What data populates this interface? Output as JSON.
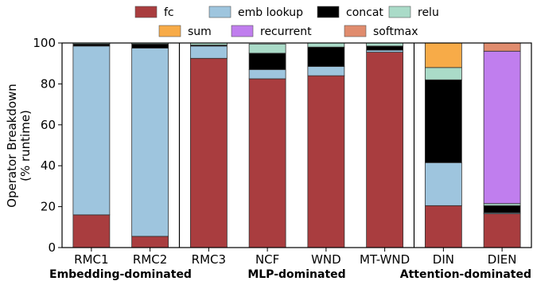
{
  "chart_data": {
    "type": "bar",
    "stacked": true,
    "ylabel_line1": "Operator Breakdown",
    "ylabel_line2": "(% runtime)",
    "ylim": [
      0,
      100
    ],
    "yticks": [
      0,
      20,
      40,
      60,
      80,
      100
    ],
    "categories": [
      "RMC1",
      "RMC2",
      "RMC3",
      "NCF",
      "WND",
      "MT-WND",
      "DIN",
      "DIEN"
    ],
    "groups": [
      {
        "label": "Embedding-dominated",
        "categories": [
          "RMC1",
          "RMC2"
        ]
      },
      {
        "label": "MLP-dominated",
        "categories": [
          "RMC3",
          "NCF",
          "WND",
          "MT-WND"
        ]
      },
      {
        "label": "Attention-dominated",
        "categories": [
          "DIN",
          "DIEN"
        ]
      }
    ],
    "legend_position": "top-center",
    "series": [
      {
        "name": "fc",
        "color": "#a93d3f",
        "values": [
          16,
          5.5,
          92.5,
          82.5,
          84,
          95.5,
          20.5,
          16.5
        ]
      },
      {
        "name": "emb lookup",
        "color": "#9ec5de",
        "values": [
          82.5,
          92,
          6,
          4.5,
          4.5,
          1,
          21,
          0.5
        ]
      },
      {
        "name": "concat",
        "color": "#000000",
        "values": [
          1,
          2,
          0.5,
          8,
          9.5,
          2,
          40.5,
          3.5
        ]
      },
      {
        "name": "relu",
        "color": "#aadbc8",
        "values": [
          0.5,
          0.5,
          1,
          4.5,
          2,
          1.5,
          6,
          1
        ]
      },
      {
        "name": "sum",
        "color": "#f7ab48",
        "values": [
          0,
          0,
          0,
          0,
          0,
          0,
          12,
          0
        ]
      },
      {
        "name": "recurrent",
        "color": "#c07eee",
        "values": [
          0,
          0,
          0,
          0,
          0,
          0,
          0,
          74.5
        ]
      },
      {
        "name": "softmax",
        "color": "#e08c6e",
        "values": [
          0,
          0,
          0,
          0,
          0,
          0,
          0,
          4
        ]
      }
    ]
  }
}
